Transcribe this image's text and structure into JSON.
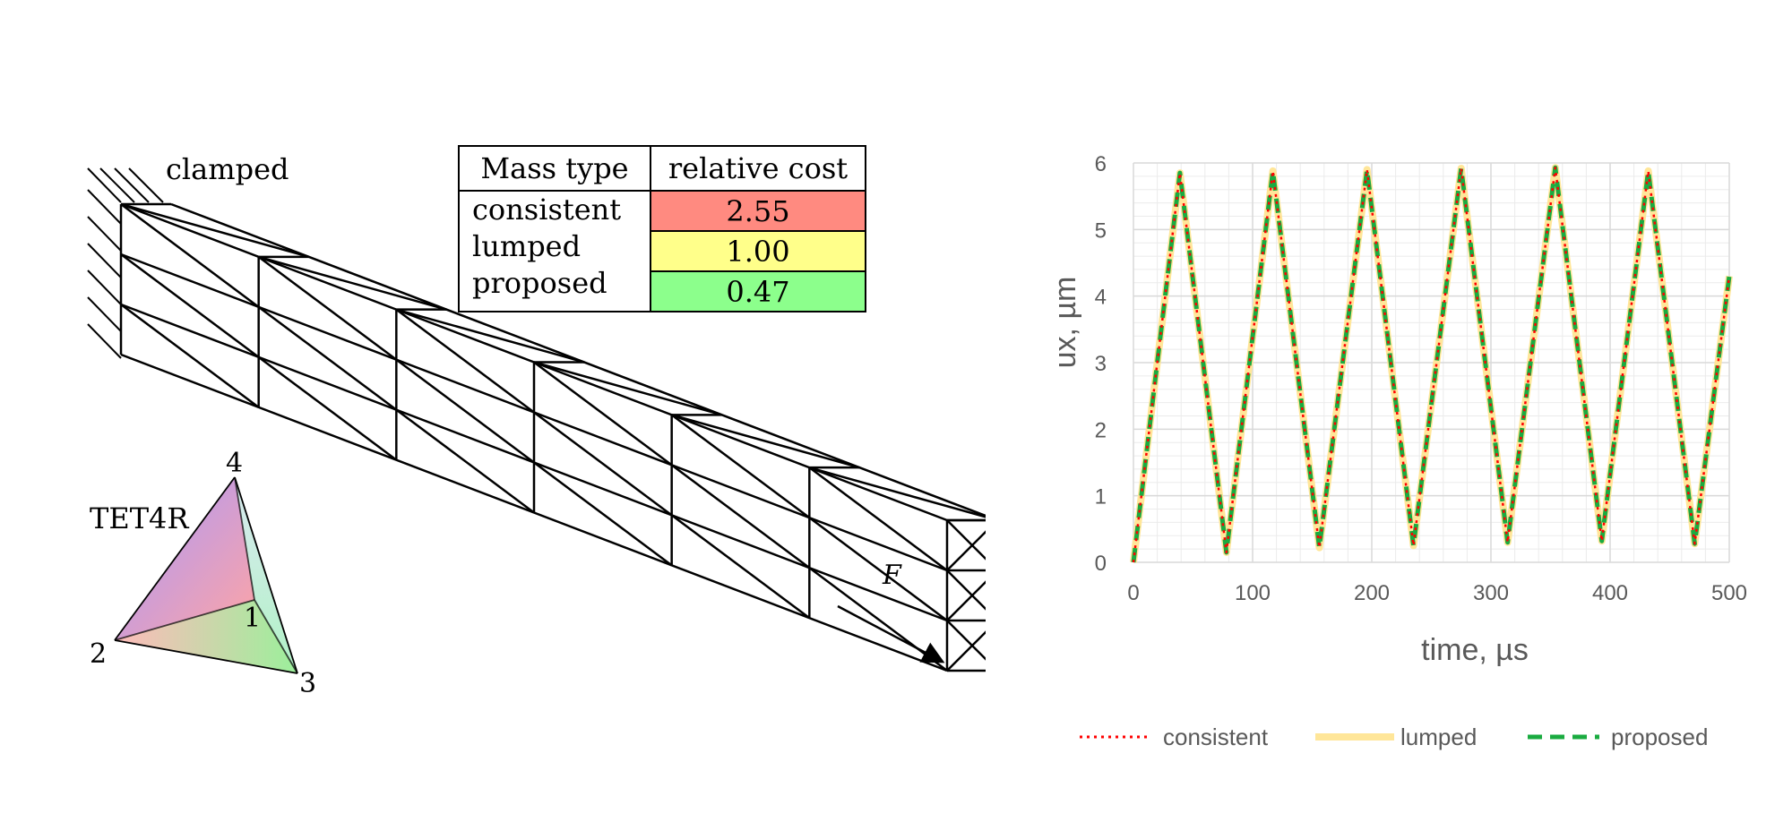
{
  "left_figure": {
    "clamped_label": "clamped",
    "element_label": "TET4R",
    "node_labels": [
      "1",
      "2",
      "3",
      "4"
    ],
    "force_label": "F"
  },
  "cost_table": {
    "headers": [
      "Mass type",
      "relative cost"
    ],
    "rows": [
      {
        "type": "consistent",
        "cost": "2.55",
        "color": "#ff8a80"
      },
      {
        "type": "lumped",
        "cost": "1.00",
        "color": "#ffff8a"
      },
      {
        "type": "proposed",
        "cost": "0.47",
        "color": "#8cff8c"
      }
    ]
  },
  "chart_data": {
    "type": "line",
    "xlabel": "time, µs",
    "ylabel": "ux, µm",
    "xlim": [
      0,
      500
    ],
    "ylim": [
      0,
      6
    ],
    "xticks": [
      0,
      100,
      200,
      300,
      400,
      500
    ],
    "yticks": [
      0,
      1,
      2,
      3,
      4,
      5,
      6
    ],
    "grid": true,
    "legend_position": "bottom",
    "series": [
      {
        "name": "consistent",
        "color": "#ff0000",
        "style": "dotted"
      },
      {
        "name": "lumped",
        "color": "#ffe699",
        "style": "solid-thick"
      },
      {
        "name": "proposed",
        "color": "#1aab40",
        "style": "dashed"
      }
    ],
    "x": [
      0,
      39,
      78,
      117,
      156,
      196,
      235,
      275,
      314,
      354,
      393,
      432,
      471,
      500
    ],
    "values": [
      0,
      5.85,
      0.15,
      5.88,
      0.22,
      5.9,
      0.25,
      5.92,
      0.3,
      5.93,
      0.32,
      5.88,
      0.28,
      4.3
    ]
  }
}
